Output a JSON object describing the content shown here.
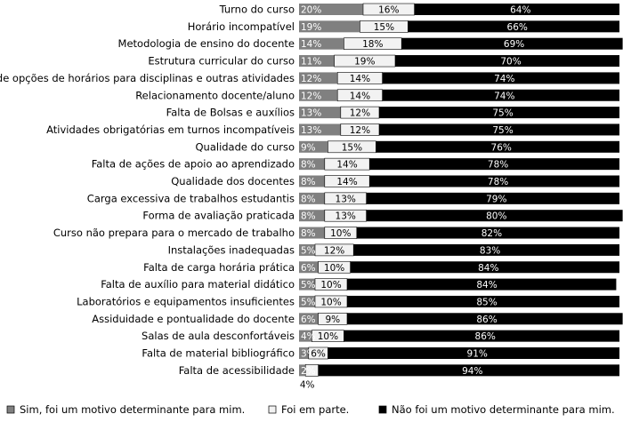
{
  "chart_data": {
    "type": "bar",
    "orientation": "horizontal",
    "stacked": true,
    "percent_stacked": true,
    "categories": [
      "Turno do curso",
      "Horário incompatível",
      "Metodologia de ensino do docente",
      "Estrutura curricular do curso",
      "Falta de opções de horários para disciplinas e outras atividades",
      "Relacionamento docente/aluno",
      "Falta de Bolsas e auxílios",
      "Atividades obrigatórias em turnos incompatíveis",
      "Qualidade do curso",
      "Falta de ações de apoio ao aprendizado",
      "Qualidade dos docentes",
      "Carga excessiva de trabalhos estudantis",
      "Forma de avaliação praticada",
      "Curso não prepara para o mercado de trabalho",
      "Instalações inadequadas",
      "Falta de carga horária prática",
      "Falta de auxílio para material didático",
      "Laboratórios e equipamentos insuficientes",
      "Assiduidade e pontualidade do docente",
      "Salas de aula desconfortáveis",
      "Falta de material bibliográfico",
      "Falta de acessibilidade"
    ],
    "series": [
      {
        "name": "Sim, foi um motivo determinante para mim.",
        "color": "#808080",
        "values": [
          20,
          19,
          14,
          11,
          12,
          12,
          13,
          13,
          9,
          8,
          8,
          8,
          8,
          8,
          5,
          6,
          5,
          5,
          6,
          4,
          3,
          2
        ],
        "labels": [
          "20%",
          "19%",
          "14%",
          "11%",
          "12%",
          "12%",
          "13%",
          "13%",
          "9%",
          "8%",
          "8%",
          "8%",
          "8%",
          "8%",
          "5%",
          "6%",
          "5%",
          "5%",
          "6%",
          "4%",
          "3%",
          "2%"
        ]
      },
      {
        "name": "Foi em parte.",
        "color": "#f2f2f2",
        "values": [
          16,
          15,
          18,
          19,
          14,
          14,
          12,
          12,
          15,
          14,
          14,
          13,
          13,
          10,
          12,
          10,
          10,
          10,
          9,
          10,
          6,
          4
        ],
        "labels": [
          "16%",
          "15%",
          "18%",
          "19%",
          "14%",
          "14%",
          "12%",
          "12%",
          "15%",
          "14%",
          "14%",
          "13%",
          "13%",
          "10%",
          "12%",
          "10%",
          "10%",
          "10%",
          "9%",
          "10%",
          "6%",
          "4%"
        ]
      },
      {
        "name": "Não foi um motivo determinante para mim.",
        "color": "#000000",
        "values": [
          64,
          66,
          69,
          70,
          74,
          74,
          75,
          75,
          76,
          78,
          78,
          79,
          80,
          82,
          83,
          84,
          84,
          85,
          86,
          86,
          91,
          94
        ],
        "labels": [
          "64%",
          "66%",
          "69%",
          "70%",
          "74%",
          "74%",
          "75%",
          "75%",
          "76%",
          "78%",
          "78%",
          "79%",
          "80%",
          "82%",
          "83%",
          "84%",
          "84%",
          "85%",
          "86%",
          "86%",
          "91%",
          "94%"
        ]
      }
    ],
    "xlim": [
      0,
      100
    ],
    "grid": false,
    "legend_position": "bottom"
  }
}
